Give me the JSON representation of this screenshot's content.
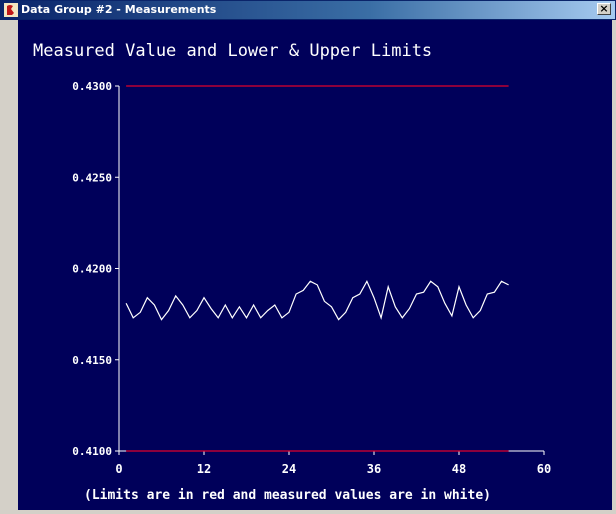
{
  "window": {
    "title": "Data Group #2 - Measurements",
    "close_glyph": "×",
    "icon": "red-chart-app-icon"
  },
  "colors": {
    "background": "#00005a",
    "limits": "#e0002a",
    "measured": "#ffffff",
    "axis": "#ffffff",
    "text": "#ffffff"
  },
  "chart_data": {
    "type": "line",
    "title": "Measured Value and Lower & Upper Limits",
    "footnote": "(Limits are in red and measured values are in white)",
    "xlim": [
      0,
      60
    ],
    "ylim": [
      0.41,
      0.43
    ],
    "x_ticks": [
      "0",
      "12",
      "24",
      "36",
      "48",
      "60"
    ],
    "y_ticks": [
      "0.4100",
      "0.4150",
      "0.4200",
      "0.4250",
      "0.4300"
    ],
    "series": [
      {
        "role": "upper-limit",
        "x": [
          1,
          55
        ],
        "y": [
          0.43,
          0.43
        ]
      },
      {
        "role": "lower-limit",
        "x": [
          1,
          55
        ],
        "y": [
          0.41,
          0.41
        ]
      },
      {
        "role": "measured",
        "x": [
          1,
          2,
          3,
          4,
          5,
          6,
          7,
          8,
          9,
          10,
          11,
          12,
          13,
          14,
          15,
          16,
          17,
          18,
          19,
          20,
          21,
          22,
          23,
          24,
          25,
          26,
          27,
          28,
          29,
          30,
          31,
          32,
          33,
          34,
          35,
          36,
          37,
          38,
          39,
          40,
          41,
          42,
          43,
          44,
          45,
          46,
          47,
          48,
          49,
          50,
          51,
          52,
          53,
          54,
          55
        ],
        "y": [
          0.4181,
          0.4173,
          0.4176,
          0.4184,
          0.418,
          0.4172,
          0.4177,
          0.4185,
          0.418,
          0.4173,
          0.4177,
          0.4184,
          0.4178,
          0.4173,
          0.418,
          0.4173,
          0.4179,
          0.4173,
          0.418,
          0.4173,
          0.4177,
          0.418,
          0.4173,
          0.4176,
          0.4186,
          0.4188,
          0.4193,
          0.4191,
          0.4182,
          0.4179,
          0.4172,
          0.4176,
          0.4184,
          0.4186,
          0.4193,
          0.4184,
          0.4173,
          0.419,
          0.4179,
          0.4173,
          0.4178,
          0.4186,
          0.4187,
          0.4193,
          0.419,
          0.4181,
          0.4174,
          0.419,
          0.418,
          0.4173,
          0.4177,
          0.4186,
          0.4187,
          0.4193,
          0.4191
        ]
      }
    ]
  }
}
